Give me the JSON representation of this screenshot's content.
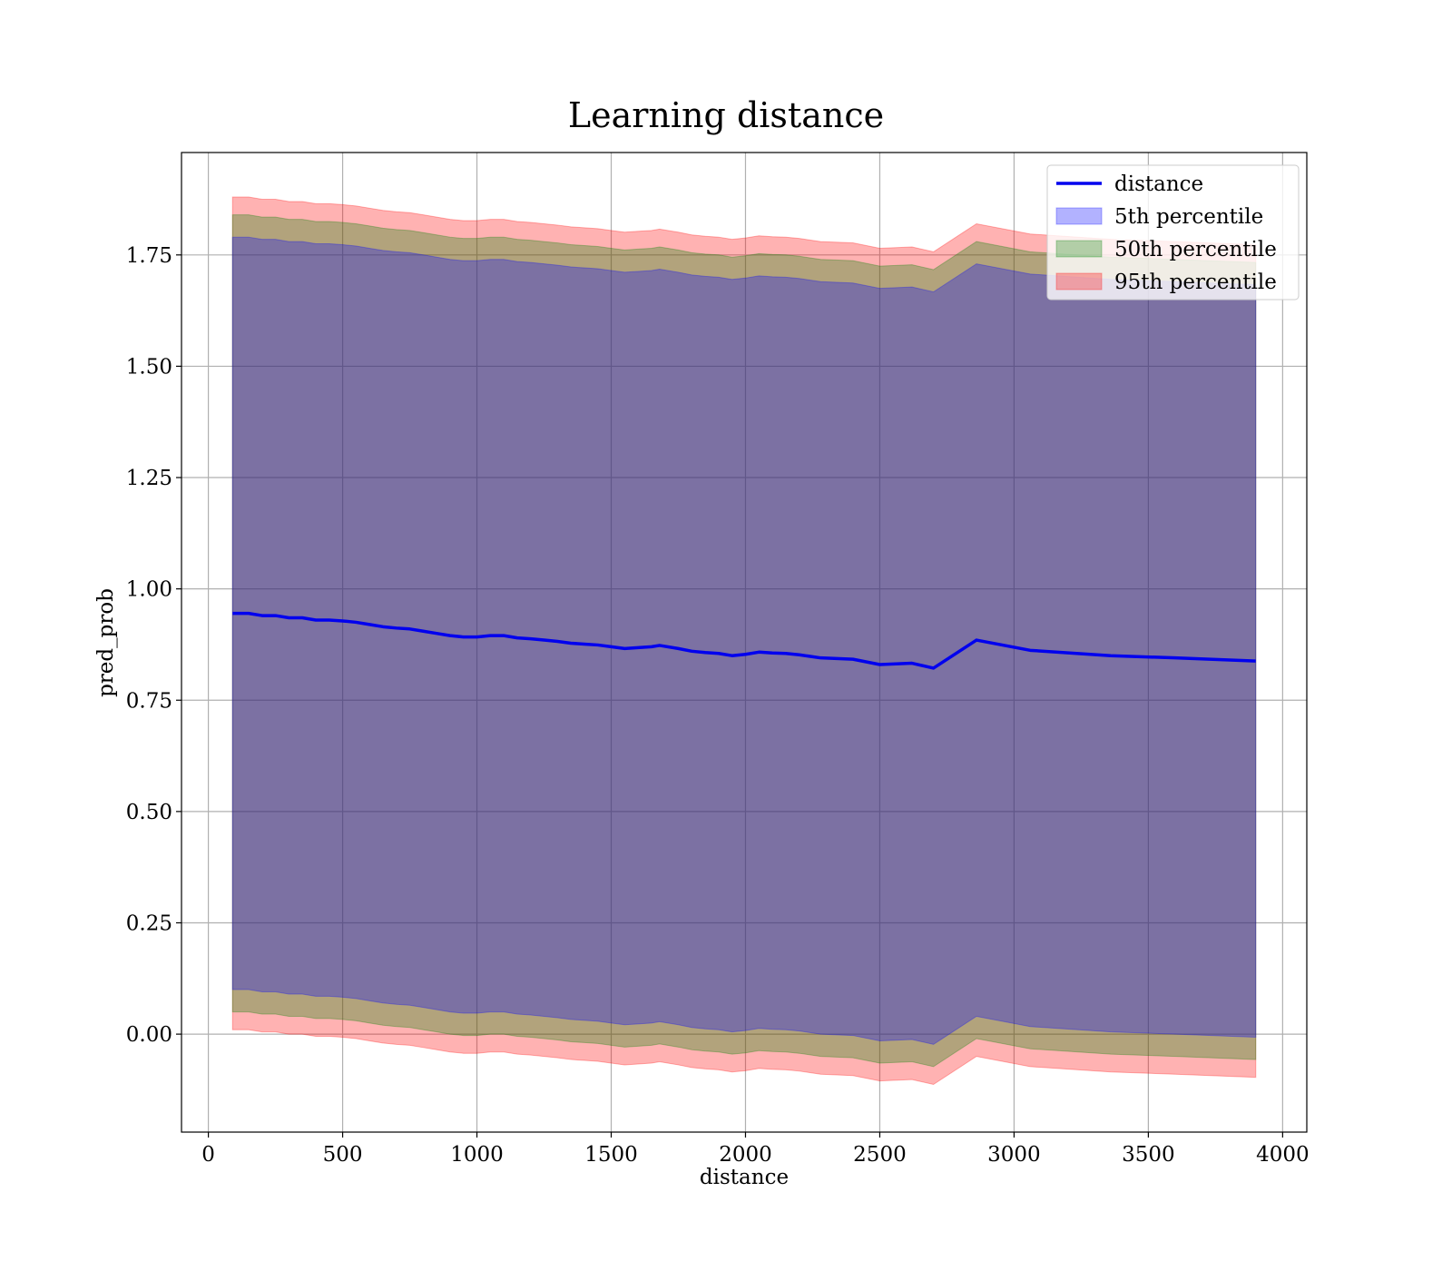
{
  "chart_data": {
    "type": "line",
    "title": "Learning distance",
    "xlabel": "distance",
    "ylabel": "pred_prob",
    "xlim": [
      -100,
      4090
    ],
    "ylim": [
      -0.22,
      1.98
    ],
    "x_ticks": [
      0,
      500,
      1000,
      1500,
      2000,
      2500,
      3000,
      3500,
      4000
    ],
    "x_tick_labels": [
      "0",
      "500",
      "1000",
      "1500",
      "2000",
      "2500",
      "3000",
      "3500",
      "4000"
    ],
    "y_ticks": [
      0.0,
      0.25,
      0.5,
      0.75,
      1.0,
      1.25,
      1.5,
      1.75
    ],
    "y_tick_labels": [
      "0.00",
      "0.25",
      "0.50",
      "0.75",
      "1.00",
      "1.25",
      "1.50",
      "1.75"
    ],
    "grid": true,
    "legend_position": "top-right",
    "x": [
      90,
      150,
      200,
      250,
      300,
      350,
      400,
      450,
      500,
      550,
      600,
      650,
      700,
      750,
      800,
      850,
      900,
      950,
      1000,
      1050,
      1100,
      1150,
      1200,
      1250,
      1300,
      1350,
      1400,
      1450,
      1500,
      1550,
      1600,
      1650,
      1680,
      1750,
      1800,
      1850,
      1900,
      1950,
      2000,
      2050,
      2100,
      2150,
      2200,
      2280,
      2400,
      2500,
      2620,
      2700,
      2860,
      3060,
      3360,
      3600,
      3900
    ],
    "series": [
      {
        "name": "distance",
        "kind": "line",
        "color": "#0000ee",
        "values": [
          0.945,
          0.945,
          0.94,
          0.94,
          0.935,
          0.935,
          0.93,
          0.93,
          0.928,
          0.925,
          0.92,
          0.915,
          0.912,
          0.91,
          0.905,
          0.9,
          0.895,
          0.892,
          0.892,
          0.895,
          0.895,
          0.89,
          0.888,
          0.885,
          0.882,
          0.878,
          0.876,
          0.874,
          0.87,
          0.866,
          0.868,
          0.87,
          0.873,
          0.866,
          0.86,
          0.857,
          0.855,
          0.85,
          0.853,
          0.858,
          0.856,
          0.855,
          0.852,
          0.845,
          0.842,
          0.83,
          0.833,
          0.822,
          0.885,
          0.862,
          0.85,
          0.845,
          0.838
        ]
      },
      {
        "name": "5th percentile",
        "kind": "band",
        "color": "#0000ff",
        "lower": [
          0.1,
          0.1,
          0.095,
          0.095,
          0.09,
          0.09,
          0.085,
          0.085,
          0.083,
          0.08,
          0.075,
          0.07,
          0.067,
          0.065,
          0.06,
          0.055,
          0.05,
          0.047,
          0.047,
          0.05,
          0.05,
          0.045,
          0.043,
          0.04,
          0.037,
          0.033,
          0.031,
          0.029,
          0.025,
          0.021,
          0.023,
          0.025,
          0.028,
          0.021,
          0.015,
          0.012,
          0.01,
          0.005,
          0.008,
          0.013,
          0.011,
          0.01,
          0.007,
          0.0,
          -0.003,
          -0.015,
          -0.012,
          -0.023,
          0.04,
          0.017,
          0.005,
          0.0,
          -0.007
        ],
        "upper": [
          1.79,
          1.79,
          1.785,
          1.785,
          1.78,
          1.78,
          1.775,
          1.775,
          1.773,
          1.77,
          1.765,
          1.76,
          1.757,
          1.755,
          1.75,
          1.745,
          1.74,
          1.737,
          1.737,
          1.74,
          1.74,
          1.735,
          1.733,
          1.73,
          1.727,
          1.723,
          1.721,
          1.719,
          1.715,
          1.711,
          1.713,
          1.715,
          1.718,
          1.711,
          1.705,
          1.702,
          1.7,
          1.695,
          1.698,
          1.703,
          1.701,
          1.7,
          1.697,
          1.69,
          1.687,
          1.675,
          1.678,
          1.667,
          1.73,
          1.707,
          1.695,
          1.69,
          1.683
        ]
      },
      {
        "name": "50th percentile",
        "kind": "band",
        "color": "#008000",
        "lower": [
          0.05,
          0.05,
          0.045,
          0.045,
          0.04,
          0.04,
          0.035,
          0.035,
          0.033,
          0.03,
          0.025,
          0.02,
          0.017,
          0.015,
          0.01,
          0.005,
          0.0,
          -0.003,
          -0.003,
          0.0,
          0.0,
          -0.005,
          -0.007,
          -0.01,
          -0.013,
          -0.017,
          -0.019,
          -0.021,
          -0.025,
          -0.029,
          -0.027,
          -0.025,
          -0.022,
          -0.029,
          -0.035,
          -0.038,
          -0.04,
          -0.045,
          -0.042,
          -0.037,
          -0.039,
          -0.04,
          -0.043,
          -0.05,
          -0.053,
          -0.065,
          -0.062,
          -0.073,
          -0.01,
          -0.033,
          -0.045,
          -0.05,
          -0.057
        ],
        "upper": [
          1.84,
          1.84,
          1.835,
          1.835,
          1.83,
          1.83,
          1.825,
          1.825,
          1.823,
          1.82,
          1.815,
          1.81,
          1.807,
          1.805,
          1.8,
          1.795,
          1.79,
          1.787,
          1.787,
          1.79,
          1.79,
          1.785,
          1.783,
          1.78,
          1.777,
          1.773,
          1.771,
          1.769,
          1.765,
          1.761,
          1.763,
          1.765,
          1.768,
          1.761,
          1.755,
          1.752,
          1.75,
          1.745,
          1.748,
          1.753,
          1.751,
          1.75,
          1.747,
          1.74,
          1.737,
          1.725,
          1.728,
          1.717,
          1.78,
          1.757,
          1.745,
          1.74,
          1.733
        ]
      },
      {
        "name": "95th percentile",
        "kind": "band",
        "color": "#ff0000",
        "lower": [
          0.01,
          0.01,
          0.005,
          0.005,
          0.0,
          0.0,
          -0.005,
          -0.005,
          -0.007,
          -0.01,
          -0.015,
          -0.02,
          -0.023,
          -0.025,
          -0.03,
          -0.035,
          -0.04,
          -0.043,
          -0.043,
          -0.04,
          -0.04,
          -0.045,
          -0.047,
          -0.05,
          -0.053,
          -0.057,
          -0.059,
          -0.061,
          -0.065,
          -0.069,
          -0.067,
          -0.065,
          -0.062,
          -0.069,
          -0.075,
          -0.078,
          -0.08,
          -0.085,
          -0.082,
          -0.077,
          -0.079,
          -0.08,
          -0.083,
          -0.09,
          -0.093,
          -0.105,
          -0.102,
          -0.113,
          -0.05,
          -0.073,
          -0.085,
          -0.09,
          -0.097
        ],
        "upper": [
          1.88,
          1.88,
          1.875,
          1.875,
          1.87,
          1.87,
          1.865,
          1.865,
          1.863,
          1.86,
          1.855,
          1.85,
          1.847,
          1.845,
          1.84,
          1.835,
          1.83,
          1.827,
          1.827,
          1.83,
          1.83,
          1.825,
          1.823,
          1.82,
          1.817,
          1.813,
          1.811,
          1.809,
          1.805,
          1.801,
          1.803,
          1.805,
          1.808,
          1.801,
          1.795,
          1.792,
          1.79,
          1.785,
          1.788,
          1.793,
          1.791,
          1.79,
          1.787,
          1.78,
          1.777,
          1.765,
          1.768,
          1.757,
          1.82,
          1.797,
          1.785,
          1.78,
          1.773
        ]
      }
    ],
    "legend": [
      "distance",
      "5th percentile",
      "50th percentile",
      "95th percentile"
    ]
  }
}
